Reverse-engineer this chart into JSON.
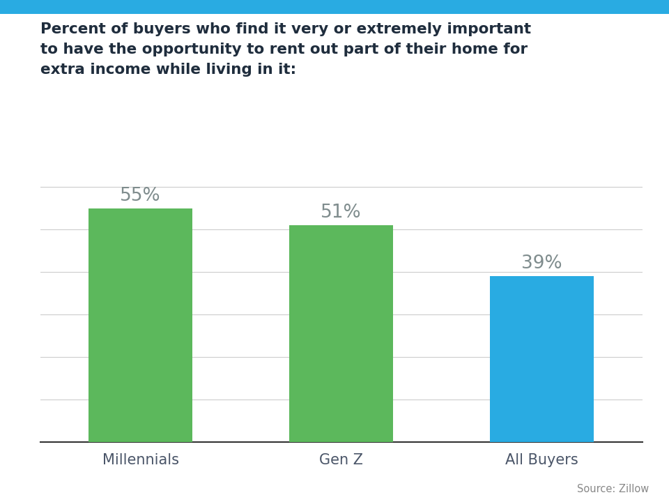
{
  "categories": [
    "Millennials",
    "Gen Z",
    "All Buyers"
  ],
  "values": [
    55,
    51,
    39
  ],
  "bar_colors": [
    "#5cb85c",
    "#5cb85c",
    "#29abe2"
  ],
  "value_labels": [
    "55%",
    "51%",
    "39%"
  ],
  "title_line1": "Percent of buyers who find it very or extremely important",
  "title_line2": "to have the opportunity to rent out part of their home for",
  "title_line3": "extra income while living in it:",
  "source_text": "Source: Zillow",
  "background_color": "#ffffff",
  "top_bar_color": "#29abe2",
  "title_color": "#1f2d3d",
  "label_color": "#7f8c8d",
  "xlabel_color": "#4a5568",
  "ylim": [
    0,
    65
  ],
  "title_fontsize": 15.5,
  "label_fontsize": 19,
  "xlabel_fontsize": 15,
  "source_fontsize": 10.5,
  "grid_color": "#cccccc",
  "bottom_spine_color": "#333333",
  "bar_width": 0.52
}
